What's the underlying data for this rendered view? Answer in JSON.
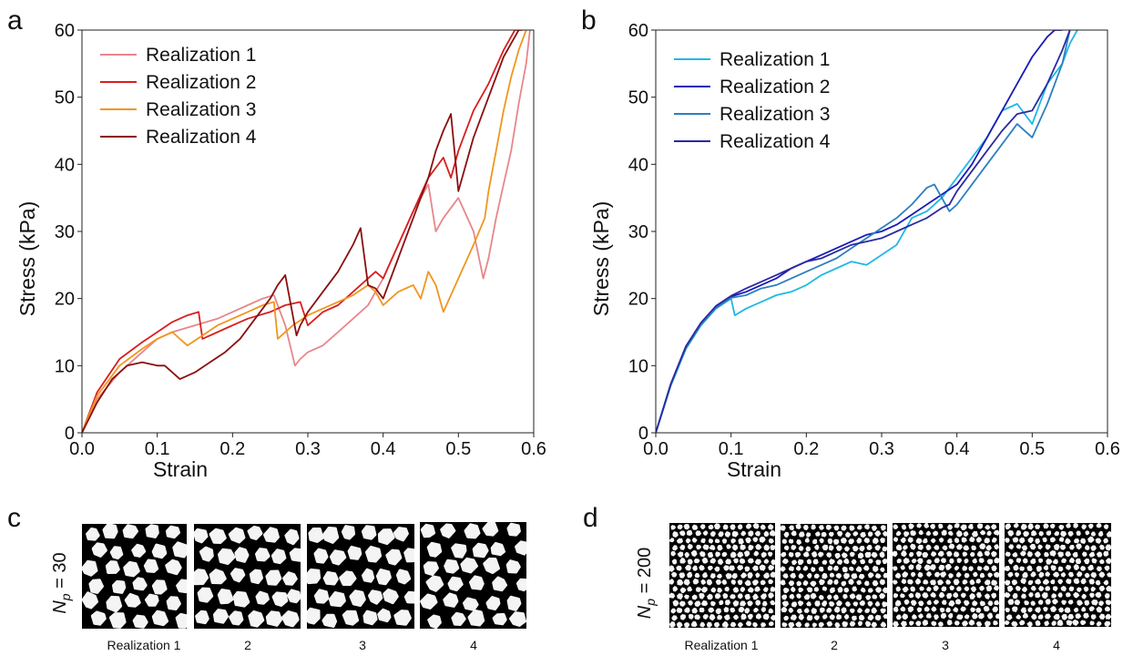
{
  "chart_data": [
    {
      "panel": "a",
      "type": "line",
      "xlabel": "Strain",
      "ylabel": "Stress (kPa)",
      "xlim": [
        0,
        0.6
      ],
      "ylim": [
        0,
        60
      ],
      "xticks": [
        "0.0",
        "0.1",
        "0.2",
        "0.3",
        "0.4",
        "0.5",
        "0.6"
      ],
      "yticks": [
        "0",
        "10",
        "20",
        "30",
        "40",
        "50",
        "60"
      ],
      "legend": "top-left",
      "series": [
        {
          "name": "Realization 1",
          "color": "#e8868a",
          "x": [
            0,
            0.02,
            0.05,
            0.08,
            0.1,
            0.12,
            0.15,
            0.18,
            0.2,
            0.22,
            0.24,
            0.255,
            0.27,
            0.283,
            0.29,
            0.3,
            0.32,
            0.34,
            0.36,
            0.38,
            0.4,
            0.42,
            0.44,
            0.46,
            0.47,
            0.48,
            0.5,
            0.52,
            0.533,
            0.54,
            0.55,
            0.56,
            0.57,
            0.58,
            0.59,
            0.595
          ],
          "y": [
            0,
            5,
            9,
            12,
            14,
            15,
            16,
            17,
            18,
            19,
            20,
            20.5,
            16,
            10,
            11,
            12,
            13,
            15,
            17,
            19,
            23,
            28,
            33,
            37,
            30,
            32,
            35,
            30,
            23,
            26,
            32,
            37,
            42,
            49,
            55,
            60
          ]
        },
        {
          "name": "Realization 2",
          "color": "#d81e1e",
          "x": [
            0,
            0.02,
            0.05,
            0.08,
            0.1,
            0.12,
            0.14,
            0.155,
            0.16,
            0.18,
            0.2,
            0.22,
            0.25,
            0.27,
            0.29,
            0.3,
            0.32,
            0.34,
            0.36,
            0.38,
            0.39,
            0.4,
            0.42,
            0.44,
            0.46,
            0.48,
            0.49,
            0.5,
            0.52,
            0.54,
            0.56,
            0.575,
            0.585
          ],
          "y": [
            0,
            6,
            11,
            13.5,
            15,
            16.5,
            17.5,
            18,
            14,
            15,
            16,
            17,
            18,
            19,
            19.5,
            16,
            18,
            19,
            21,
            23,
            24,
            23,
            28,
            33,
            38,
            41,
            38,
            42,
            48,
            52,
            57,
            60,
            60
          ]
        },
        {
          "name": "Realization 3",
          "color": "#f0961e",
          "x": [
            0,
            0.02,
            0.05,
            0.08,
            0.1,
            0.12,
            0.14,
            0.16,
            0.18,
            0.2,
            0.22,
            0.24,
            0.255,
            0.26,
            0.28,
            0.3,
            0.32,
            0.34,
            0.36,
            0.38,
            0.39,
            0.4,
            0.42,
            0.44,
            0.45,
            0.46,
            0.47,
            0.48,
            0.5,
            0.52,
            0.535,
            0.54,
            0.55,
            0.56,
            0.57,
            0.58,
            0.59
          ],
          "y": [
            0,
            5.5,
            10,
            12.5,
            14,
            15,
            13,
            14.5,
            16,
            17,
            18,
            19,
            19.5,
            14,
            16,
            17.5,
            18.5,
            19.5,
            20.5,
            22,
            21,
            19,
            21,
            22,
            20,
            24,
            22,
            18,
            23,
            28,
            32,
            36,
            42,
            48,
            53,
            57,
            60
          ]
        },
        {
          "name": "Realization 4",
          "color": "#8a0f0f",
          "x": [
            0,
            0.02,
            0.04,
            0.06,
            0.08,
            0.1,
            0.11,
            0.13,
            0.15,
            0.17,
            0.19,
            0.21,
            0.23,
            0.25,
            0.26,
            0.27,
            0.285,
            0.29,
            0.3,
            0.32,
            0.34,
            0.36,
            0.37,
            0.38,
            0.39,
            0.4,
            0.42,
            0.44,
            0.46,
            0.47,
            0.48,
            0.49,
            0.5,
            0.52,
            0.54,
            0.56,
            0.57,
            0.58
          ],
          "y": [
            0,
            4.5,
            8,
            10,
            10.5,
            10,
            10,
            8,
            9,
            10.5,
            12,
            14,
            17,
            20,
            22,
            23.5,
            14.5,
            16,
            18,
            21,
            24,
            28,
            30.5,
            22,
            21.5,
            20,
            26,
            32,
            38,
            42,
            45,
            47.5,
            36,
            44,
            50,
            56,
            58,
            60
          ]
        }
      ]
    },
    {
      "panel": "b",
      "type": "line",
      "xlabel": "Strain",
      "ylabel": "Stress (kPa)",
      "xlim": [
        0,
        0.6
      ],
      "ylim": [
        0,
        60
      ],
      "xticks": [
        "0.0",
        "0.1",
        "0.2",
        "0.3",
        "0.4",
        "0.5",
        "0.6"
      ],
      "yticks": [
        "0",
        "10",
        "20",
        "30",
        "40",
        "50",
        "60"
      ],
      "legend": "top-left",
      "series": [
        {
          "name": "Realization 1",
          "color": "#1fb8e6",
          "x": [
            0,
            0.02,
            0.04,
            0.06,
            0.08,
            0.1,
            0.105,
            0.12,
            0.14,
            0.16,
            0.18,
            0.2,
            0.22,
            0.24,
            0.26,
            0.28,
            0.3,
            0.32,
            0.34,
            0.36,
            0.38,
            0.4,
            0.42,
            0.44,
            0.46,
            0.48,
            0.5,
            0.52,
            0.54,
            0.55,
            0.56
          ],
          "y": [
            0,
            7,
            12.5,
            16,
            18.5,
            20,
            17.5,
            18.5,
            19.5,
            20.5,
            21,
            22,
            23.5,
            24.5,
            25.5,
            25,
            26.5,
            28,
            32,
            33,
            35,
            38,
            41,
            44,
            48,
            49,
            46,
            52,
            55,
            58,
            60
          ]
        },
        {
          "name": "Realization 2",
          "color": "#1a1ab8",
          "x": [
            0,
            0.02,
            0.04,
            0.06,
            0.08,
            0.1,
            0.12,
            0.14,
            0.16,
            0.18,
            0.2,
            0.22,
            0.24,
            0.26,
            0.28,
            0.3,
            0.32,
            0.34,
            0.36,
            0.38,
            0.4,
            0.42,
            0.44,
            0.46,
            0.48,
            0.5,
            0.52,
            0.53,
            0.54
          ],
          "y": [
            0,
            7.2,
            12.8,
            16.3,
            18.8,
            20.3,
            21,
            22,
            23,
            24.5,
            25.5,
            26.5,
            27.5,
            28.5,
            29.5,
            30,
            31,
            32.5,
            34,
            35.5,
            37,
            40,
            44,
            48,
            52,
            56,
            59,
            60,
            60
          ]
        },
        {
          "name": "Realization 3",
          "color": "#2d7fc0",
          "x": [
            0,
            0.02,
            0.04,
            0.06,
            0.08,
            0.1,
            0.12,
            0.14,
            0.16,
            0.18,
            0.2,
            0.22,
            0.24,
            0.26,
            0.28,
            0.3,
            0.32,
            0.34,
            0.36,
            0.37,
            0.38,
            0.39,
            0.4,
            0.42,
            0.44,
            0.46,
            0.48,
            0.5,
            0.52,
            0.54,
            0.55
          ],
          "y": [
            0,
            7.1,
            12.6,
            16.1,
            18.6,
            20.1,
            20.5,
            21.5,
            22,
            23,
            24,
            25,
            26,
            27.5,
            29,
            30.5,
            32,
            34,
            36.5,
            37,
            35,
            33,
            34,
            37,
            40,
            43,
            46,
            44,
            49,
            55,
            60
          ]
        },
        {
          "name": "Realization 4",
          "color": "#2a2aa0",
          "x": [
            0,
            0.02,
            0.04,
            0.06,
            0.08,
            0.1,
            0.12,
            0.14,
            0.16,
            0.18,
            0.2,
            0.22,
            0.24,
            0.26,
            0.28,
            0.3,
            0.32,
            0.34,
            0.36,
            0.38,
            0.39,
            0.4,
            0.42,
            0.44,
            0.46,
            0.48,
            0.5,
            0.52,
            0.54,
            0.55
          ],
          "y": [
            0,
            7.3,
            12.9,
            16.4,
            18.9,
            20.4,
            21.5,
            22.5,
            23.5,
            24.5,
            25.5,
            26,
            27,
            28,
            28.5,
            29,
            30,
            31,
            32,
            33.5,
            34,
            36,
            39,
            42,
            45,
            47.5,
            48,
            52,
            57,
            60
          ]
        }
      ]
    }
  ],
  "panels": {
    "a": "a",
    "b": "b",
    "c": "c",
    "d": "d"
  },
  "images": {
    "c": {
      "np_label": "N",
      "np_sub": "p",
      "np_value": " = 30",
      "labels": [
        "Realization 1",
        "2",
        "3",
        "4"
      ]
    },
    "d": {
      "np_label": "N",
      "np_sub": "p",
      "np_value": " = 200",
      "labels": [
        "Realization 1",
        "2",
        "3",
        "4"
      ]
    }
  }
}
